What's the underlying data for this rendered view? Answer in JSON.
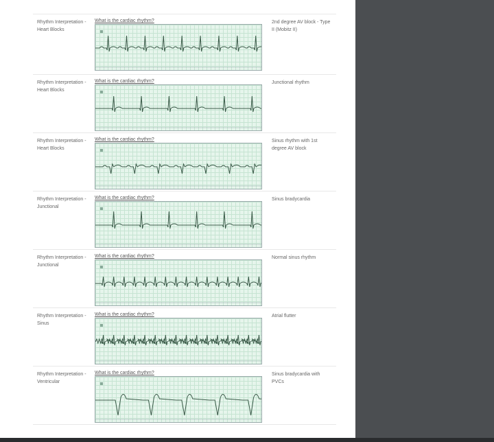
{
  "question_label": "What is the cardiac rhythm?",
  "rows": [
    {
      "topic": "Rhythm Interpretation - Heart Blocks",
      "answer": "2nd degree AV block - Type II (Mobitz II)"
    },
    {
      "topic": "Rhythm Interpretation - Heart Blocks",
      "answer": "Junctional rhythm"
    },
    {
      "topic": "Rhythm Interpretation - Heart Blocks",
      "answer": "Sinus rhythm with 1st degree AV block"
    },
    {
      "topic": "Rhythm Interpretation - Junctional",
      "answer": "Sinus bradycardia"
    },
    {
      "topic": "Rhythm Interpretation - Junctional",
      "answer": "Normal sinus rhythm"
    },
    {
      "topic": "Rhythm Interpretation - Sinus",
      "answer": "Atrial flutter"
    },
    {
      "topic": "Rhythm Interpretation - Ventricular",
      "answer": "Sinus bradycardia with PVCs"
    }
  ],
  "colors": {
    "background": "#4b4e51",
    "panel": "#ffffff",
    "ecg_grid": "#e6f5ec",
    "ecg_trace": "#3a5a48"
  }
}
